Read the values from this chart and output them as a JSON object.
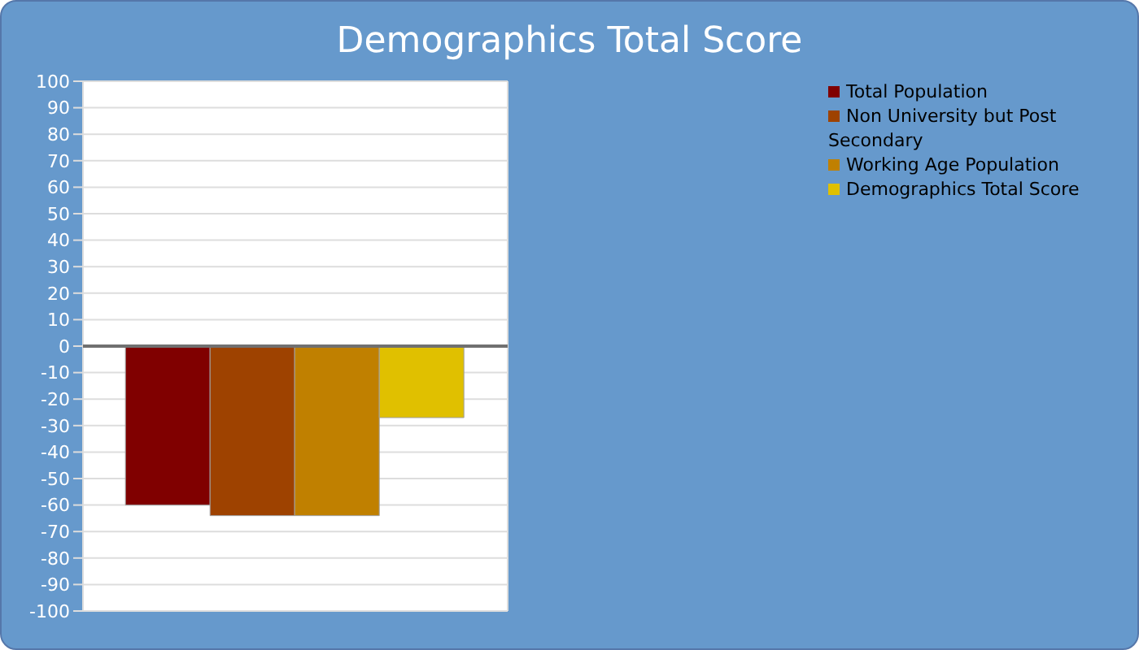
{
  "chart_data": {
    "type": "bar",
    "title": "Demographics Total Score",
    "categories": [
      null
    ],
    "series": [
      {
        "name": "Total Population",
        "color": "#800000",
        "values": [
          -60
        ]
      },
      {
        "name": "Non University but Post Secondary",
        "color": "#9e4200",
        "values": [
          -64
        ]
      },
      {
        "name": "Working Age Population",
        "color": "#c08000",
        "values": [
          -64
        ]
      },
      {
        "name": "Demographics Total Score",
        "color": "#e0c000",
        "values": [
          -27
        ]
      }
    ],
    "ylim": [
      -100,
      100
    ],
    "yticks": [
      -100,
      -90,
      -80,
      -70,
      -60,
      -50,
      -40,
      -30,
      -20,
      -10,
      0,
      10,
      20,
      30,
      40,
      50,
      60,
      70,
      80,
      90,
      100
    ],
    "ref_lines": [
      {
        "axis": "y",
        "value": 0,
        "color": "#707070"
      }
    ],
    "grid": true,
    "legend": "top right",
    "tick_labels": "y"
  }
}
